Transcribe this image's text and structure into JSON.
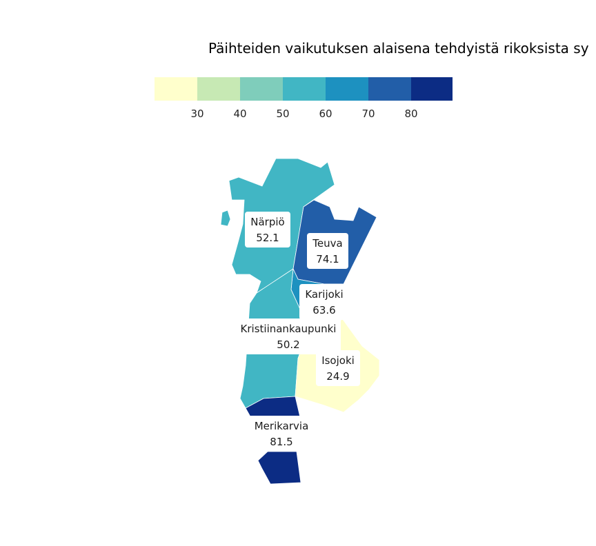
{
  "title": "Päihteiden vaikutuksen alaisena tehdyistä rikoksista sy",
  "legend": {
    "colors": [
      "#ffffcc",
      "#c7e9b4",
      "#7fcdbb",
      "#41b6c4",
      "#1d91c0",
      "#225ea8",
      "#0c2c84"
    ],
    "ticks": [
      "30",
      "40",
      "50",
      "60",
      "70",
      "80"
    ]
  },
  "chart_data": {
    "type": "choropleth",
    "title": "Päihteiden vaikutuksen alaisena tehdyistä rikoksista sy",
    "bins": [
      30,
      40,
      50,
      60,
      70,
      80
    ],
    "regions": [
      {
        "name": "Närpiö",
        "value": "52.1",
        "color": "#41b6c4"
      },
      {
        "name": "Teuva",
        "value": "74.1",
        "color": "#225ea8"
      },
      {
        "name": "Karijoki",
        "value": "63.6",
        "color": "#1d91c0"
      },
      {
        "name": "Kristiinankaupunki",
        "value": "50.2",
        "color": "#41b6c4"
      },
      {
        "name": "Isojoki",
        "value": "24.9",
        "color": "#ffffcc"
      },
      {
        "name": "Merikarvia",
        "value": "81.5",
        "color": "#0c2c84"
      }
    ]
  }
}
